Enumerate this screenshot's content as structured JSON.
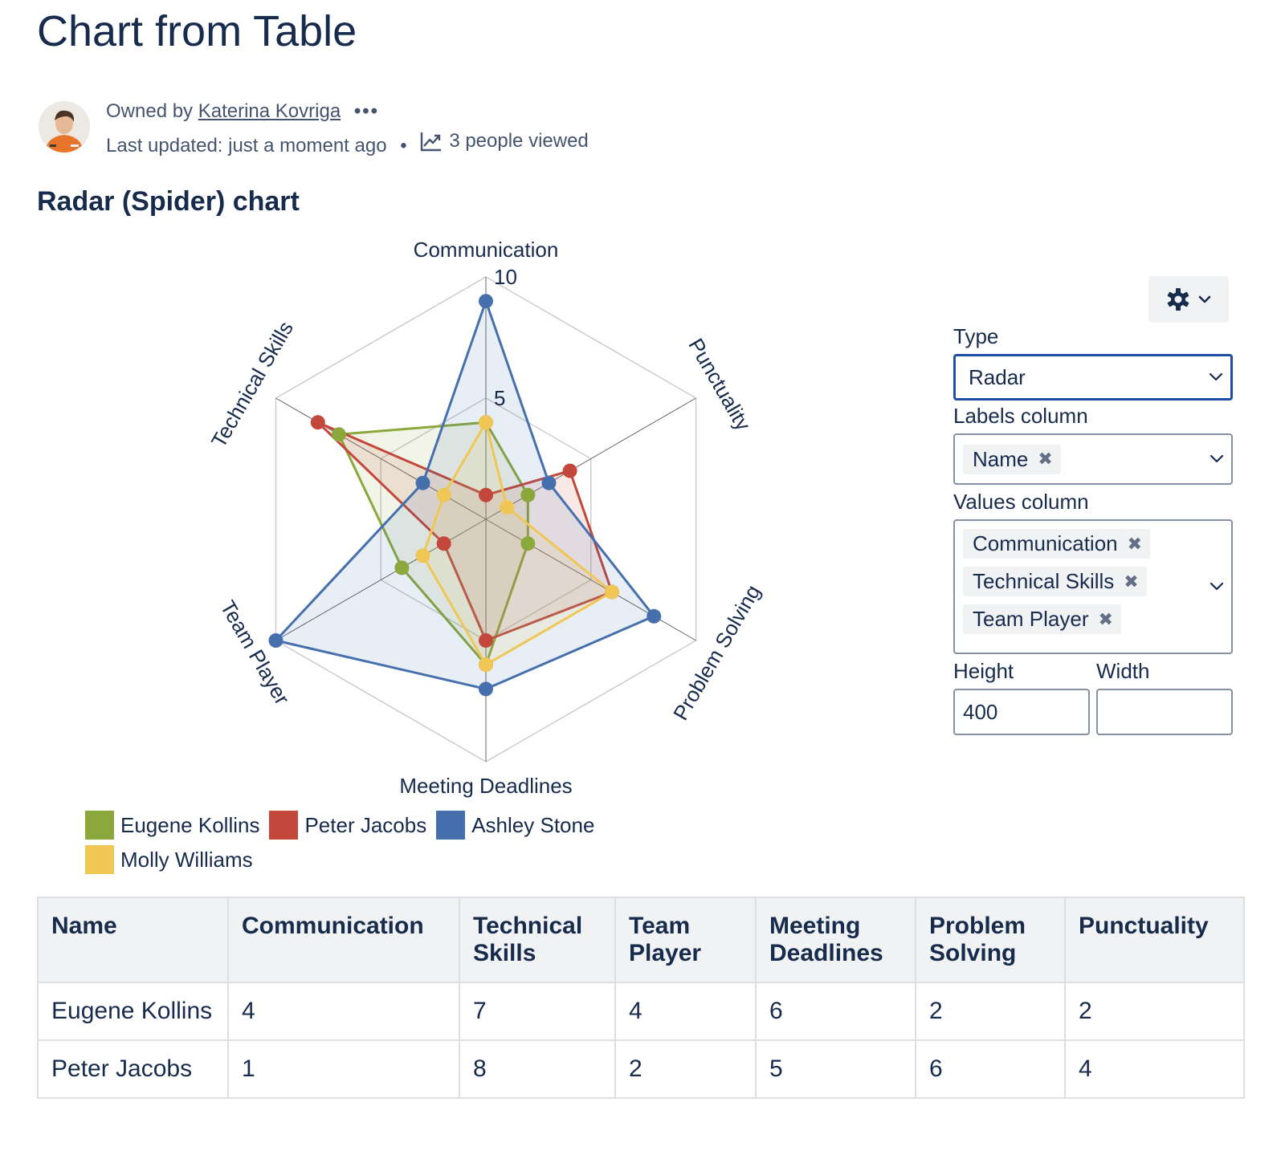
{
  "page": {
    "title": "Chart from Table",
    "owned_by_prefix": "Owned by",
    "owner": "Katerina Kovriga",
    "more_label": "•••",
    "last_updated": "Last updated: just a moment ago",
    "views": "3 people viewed",
    "section_heading": "Radar (Spider) chart"
  },
  "chart_data": {
    "type": "radar",
    "axes": [
      "Communication",
      "Punctuality",
      "Problem Solving",
      "Meeting Deadlines",
      "Team Player",
      "Technical Skills"
    ],
    "scale": {
      "min": 0,
      "max": 10,
      "ticks": [
        5,
        10
      ]
    },
    "series": [
      {
        "name": "Eugene Kollins",
        "color": "#8aa83b",
        "values": [
          4,
          2,
          2,
          6,
          4,
          7
        ]
      },
      {
        "name": "Peter Jacobs",
        "color": "#c3473a",
        "values": [
          1,
          4,
          6,
          5,
          2,
          8
        ]
      },
      {
        "name": "Ashley Stone",
        "color": "#4570ad",
        "values": [
          9,
          3,
          8,
          7,
          10,
          3
        ]
      },
      {
        "name": "Molly Williams",
        "color": "#f0c654",
        "values": [
          4,
          1,
          6,
          6,
          3,
          2
        ]
      }
    ],
    "legend": "bottom"
  },
  "config": {
    "type_label": "Type",
    "type_value": "Radar",
    "labels_column_label": "Labels column",
    "labels_chips": [
      "Name"
    ],
    "values_column_label": "Values column",
    "values_chips": [
      "Communication",
      "Technical Skills",
      "Team Player"
    ],
    "height_label": "Height",
    "height_value": "400",
    "width_label": "Width",
    "width_value": ""
  },
  "table": {
    "headers": [
      "Name",
      "Communication",
      "Technical Skills",
      "Team Player",
      "Meeting Deadlines",
      "Problem Solving",
      "Punctuality"
    ],
    "rows": [
      [
        "Eugene Kollins",
        "4",
        "7",
        "4",
        "6",
        "2",
        "2"
      ],
      [
        "Peter Jacobs",
        "1",
        "8",
        "2",
        "5",
        "6",
        "4"
      ]
    ]
  },
  "icons": {
    "views": "chart-trend-icon",
    "settings": "gear-icon",
    "dropdown": "chevron-down-icon",
    "remove": "close-icon"
  }
}
